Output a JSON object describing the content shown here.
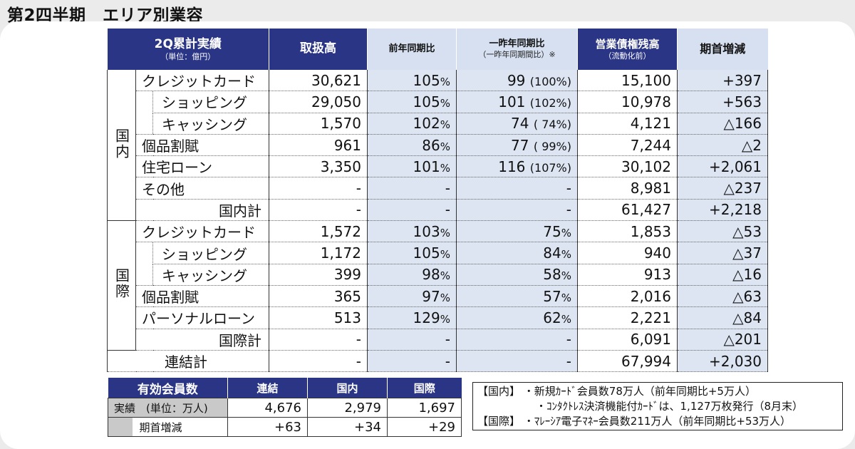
{
  "title": "第2四半期　エリア別業容",
  "table": {
    "header": {
      "col1": "2Q累計実績",
      "col1_unit": "（単位：億円）",
      "handling": "取扱高",
      "yoy": "前年同期比",
      "two_year": "一昨年同期比",
      "two_year_note": "（一昨年同期間比）※",
      "receivables": "営業債権残高",
      "receivables_note": "（流動化前）",
      "change": "期首増減"
    },
    "domestic_label": "国内",
    "international_label": "国際",
    "domestic_rows": [
      {
        "label": "クレジットカード",
        "handling": "30,621",
        "yoy": "105",
        "two": "99",
        "two_paren": "(100%)",
        "recv": "15,100",
        "chg": "+397"
      },
      {
        "label": "ショッピング",
        "handling": "29,050",
        "yoy": "105",
        "two": "101",
        "two_paren": "(102%)",
        "recv": "10,978",
        "chg": "+563"
      },
      {
        "label": "キャッシング",
        "handling": "1,570",
        "yoy": "102",
        "two": "74",
        "two_paren": "(  74%)",
        "recv": "4,121",
        "chg": "△166"
      },
      {
        "label": "個品割賦",
        "handling": "961",
        "yoy": "86",
        "two": "77",
        "two_paren": "(  99%)",
        "recv": "7,244",
        "chg": "△2"
      },
      {
        "label": "住宅ローン",
        "handling": "3,350",
        "yoy": "101",
        "two": "116",
        "two_paren": "(107%)",
        "recv": "30,102",
        "chg": "+2,061"
      },
      {
        "label": "その他",
        "handling": "-",
        "yoy": "-",
        "two": "-",
        "two_paren": "",
        "recv": "8,981",
        "chg": "△237"
      },
      {
        "label": "国内計",
        "handling": "-",
        "yoy": "-",
        "two": "-",
        "two_paren": "",
        "recv": "61,427",
        "chg": "+2,218"
      }
    ],
    "international_rows": [
      {
        "label": "クレジットカード",
        "handling": "1,572",
        "yoy": "103",
        "two": "75",
        "recv": "1,853",
        "chg": "△53"
      },
      {
        "label": "ショッピング",
        "handling": "1,172",
        "yoy": "105",
        "two": "84",
        "recv": "940",
        "chg": "△37"
      },
      {
        "label": "キャッシング",
        "handling": "399",
        "yoy": "98",
        "two": "58",
        "recv": "913",
        "chg": "△16"
      },
      {
        "label": "個品割賦",
        "handling": "365",
        "yoy": "97",
        "two": "57",
        "recv": "2,016",
        "chg": "△63"
      },
      {
        "label": "パーソナルローン",
        "handling": "513",
        "yoy": "129",
        "two": "62",
        "recv": "2,221",
        "chg": "△84"
      },
      {
        "label": "国際計",
        "handling": "-",
        "yoy": "-",
        "two": "-",
        "recv": "6,091",
        "chg": "△201"
      }
    ],
    "consolidated": {
      "label": "連結計",
      "handling": "-",
      "yoy": "-",
      "two": "-",
      "recv": "67,994",
      "chg": "+2,030"
    },
    "pct_sign": "%"
  },
  "members": {
    "title": "有効会員数",
    "cols": [
      "連結",
      "国内",
      "国際"
    ],
    "row1_label": "実績　(単位：万人)",
    "row1": [
      "4,676",
      "2,979",
      "1,697"
    ],
    "row2_label": "期首増減",
    "row2": [
      "+63",
      "+34",
      "+29"
    ]
  },
  "notes": {
    "line1": "【国内】 ・新規ｶｰﾄﾞ会員数78万人（前年同期比+5万人）",
    "line2": "・ｺﾝﾀｸﾄﾚｽ決済機能付ｶｰﾄﾞは、1,127万枚発行（8月末）",
    "line3": "【国際】 ・ﾏﾚｰｼｱ電子ﾏﾈｰ会員数211万人（前年同期比+53万人）"
  },
  "colors": {
    "header_navy": "#2b3585",
    "light_blue": "#dde5f3",
    "gray": "#c9c9c9"
  }
}
